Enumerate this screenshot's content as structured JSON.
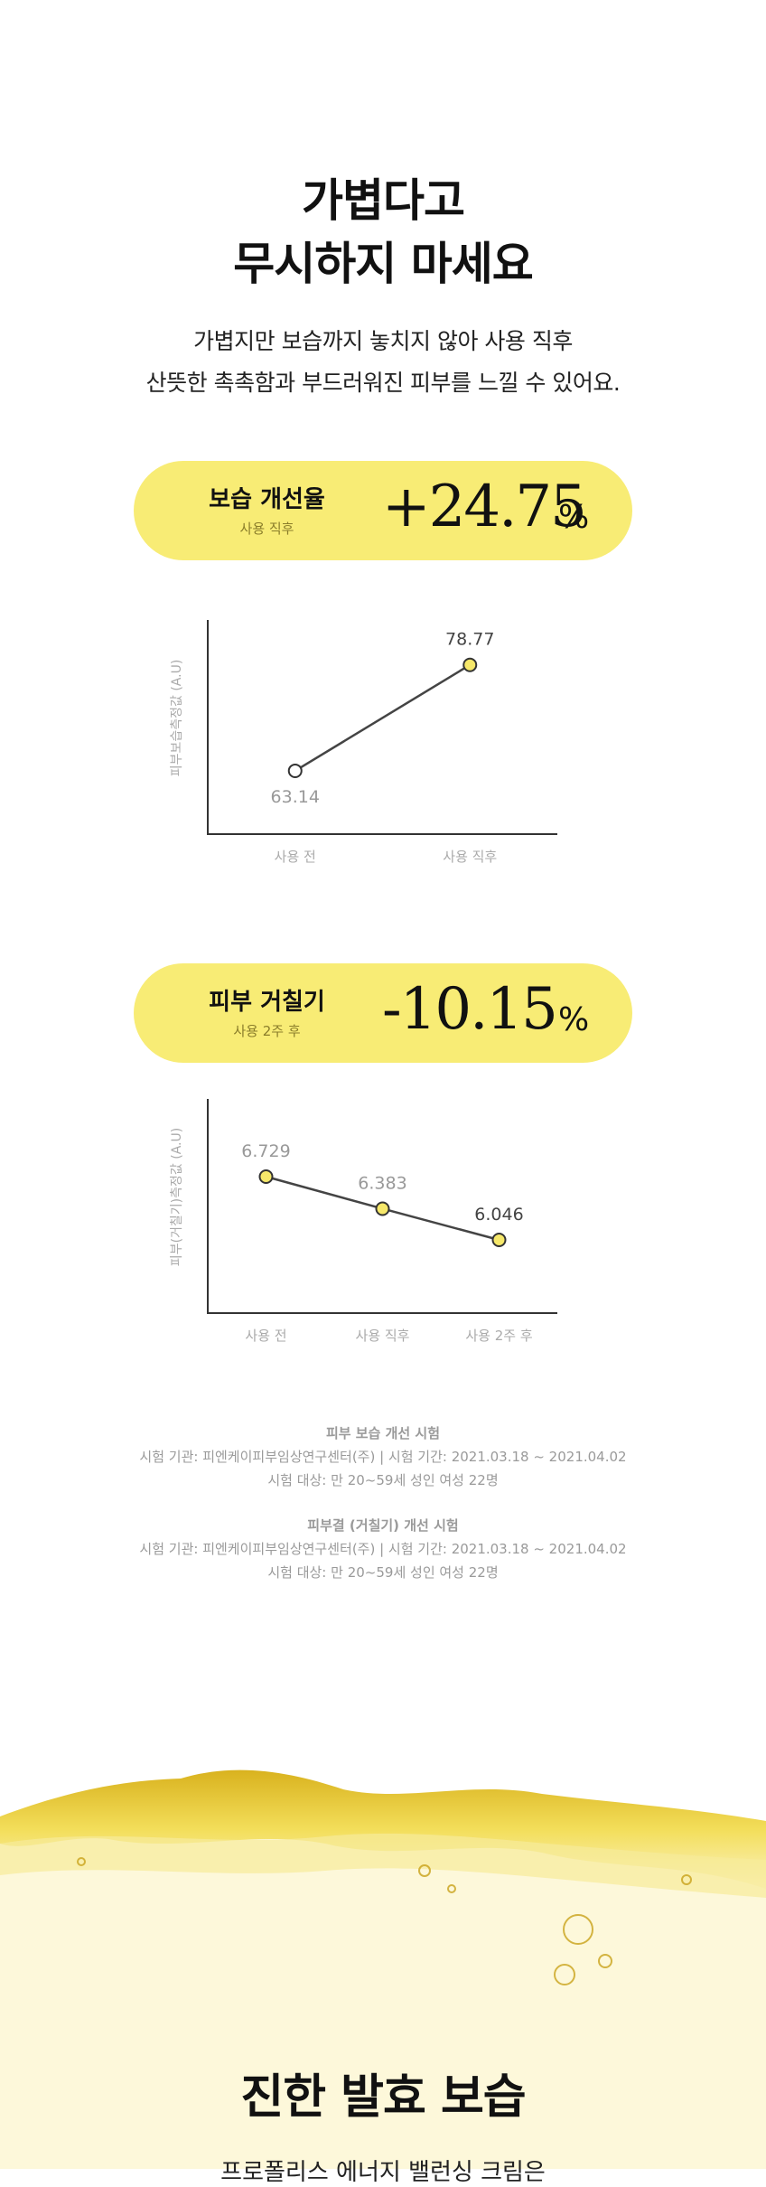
{
  "header": {
    "title_lines": [
      "가볍다고",
      "무시하지 마세요"
    ],
    "description_lines": [
      "가볍지만 보습까지 놓치지 않아 사용 직후",
      "산뜻한 촉촉함과 부드러워진 피부를 느낄 수 있어요."
    ]
  },
  "metrics": [
    {
      "label": "보습 개선율",
      "timing": "사용 직후",
      "change": "+24.75",
      "unit": "%",
      "chart": {
        "type": "line",
        "y_axis_label": "피부보습측정값 (A.U)",
        "categories": [
          "사용 전",
          "사용 직후"
        ],
        "values": [
          63.14,
          78.77
        ],
        "label_positions": [
          "below",
          "above"
        ],
        "marker_colors": [
          "#ffffff",
          "#f6e86a"
        ],
        "line_color": "#444444",
        "ylim": [
          53.8,
          85.4
        ]
      }
    },
    {
      "label": "피부 거칠기",
      "timing": "사용 2주 후",
      "change": "-10.15",
      "unit": "%",
      "chart": {
        "type": "line",
        "y_axis_label": "피부(거칠기)측정값 (A.U)",
        "categories": [
          "사용 전",
          "사용 직후",
          "사용 2주 후"
        ],
        "values": [
          6.729,
          6.383,
          6.046
        ],
        "label_positions": [
          "above",
          "above",
          "above"
        ],
        "marker_colors": [
          "#f6e86a",
          "#f6e86a",
          "#f6e86a"
        ],
        "line_color": "#444444",
        "ylim": [
          5.256,
          7.568
        ]
      }
    }
  ],
  "notes": [
    {
      "title": "피부 보습 개선 시험",
      "lines": [
        "시험 기관: 피엔케이피부임상연구센터(주) | 시험 기간: 2021.03.18 ~ 2021.04.02",
        "시험 대상: 만 20~59세 성인 여성 22명"
      ]
    },
    {
      "title": "피부결 (거칠기) 개선 시험",
      "lines": [
        "시험 기관: 피엔케이피부임상연구센터(주) | 시험 기간: 2021.03.18 ~ 2021.04.02",
        "시험 대상: 만 20~59세 성인 여성 22명"
      ]
    }
  ],
  "footer": {
    "title": "진한 발효 보습",
    "subtitle": "프로폴리스 에너지 밸런싱 크림은"
  }
}
